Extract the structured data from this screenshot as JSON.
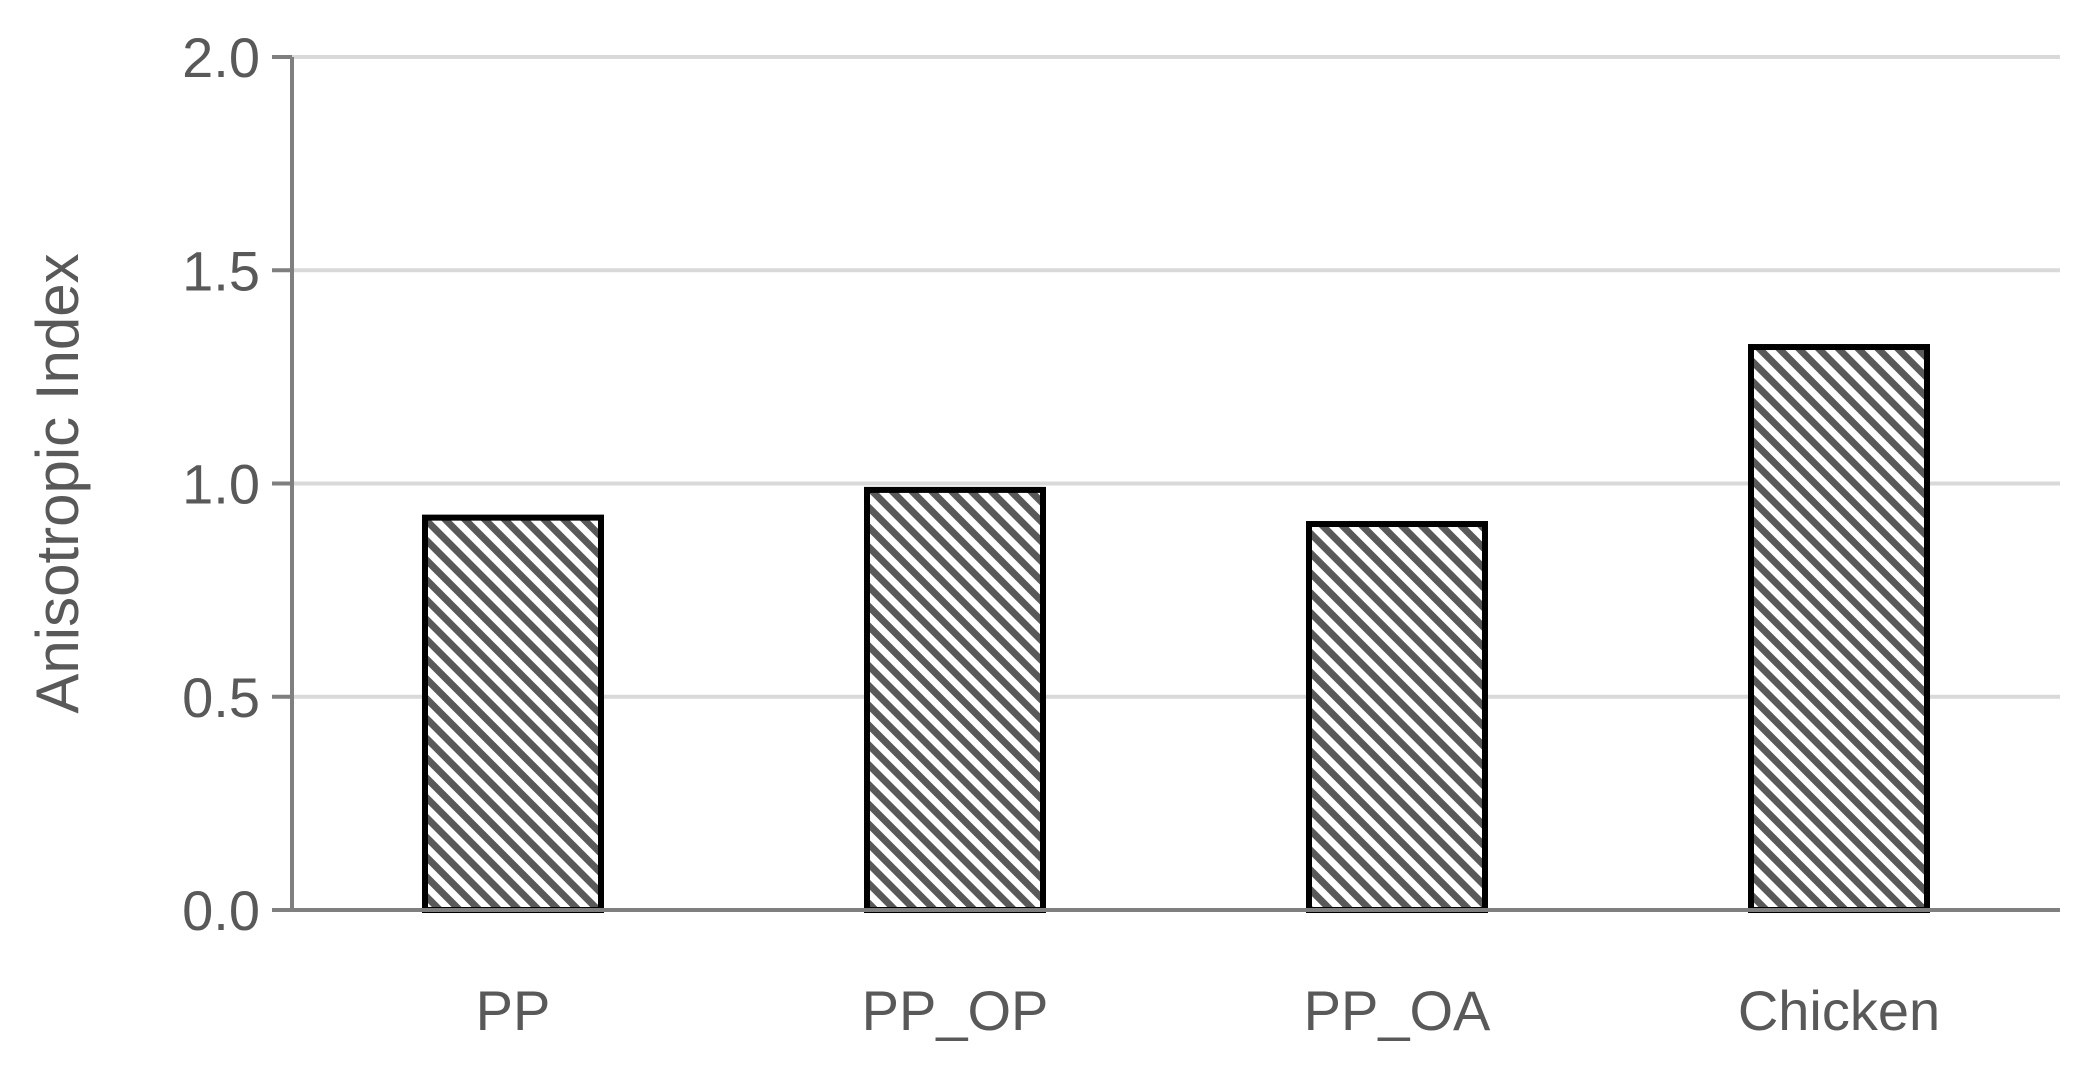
{
  "chart_data": {
    "type": "bar",
    "categories": [
      "PP",
      "PP_OP",
      "PP_OA",
      "Chicken"
    ],
    "values": [
      0.92,
      0.985,
      0.905,
      1.32
    ],
    "title": "",
    "xlabel": "",
    "ylabel": "Anisotropic Index",
    "ylim": [
      0,
      2.0
    ],
    "yticks": [
      "0.0",
      "0.5",
      "1.0",
      "1.5",
      "2.0"
    ],
    "grid": true,
    "legend": "none",
    "colors": {
      "grid": "#d9d9d9",
      "axis": "#7f7f7f",
      "bar_outline": "#000000",
      "bar_hatch": "#595959",
      "text": "#595959"
    }
  }
}
